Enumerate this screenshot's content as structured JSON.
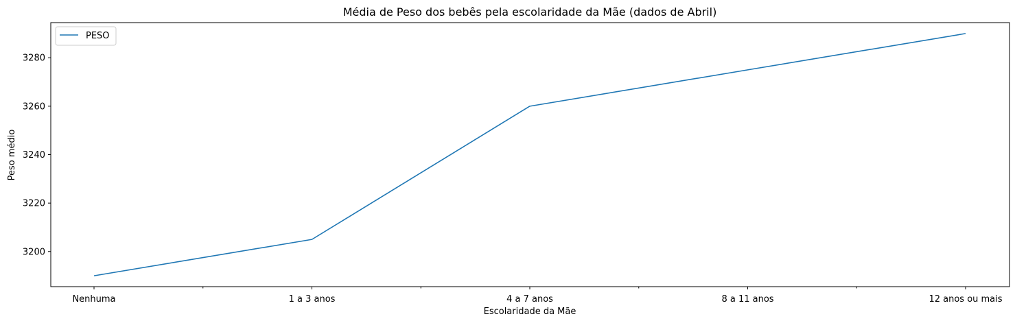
{
  "chart_data": {
    "type": "line",
    "title": "Média de Peso dos bebês pela escolaridade da Mãe (dados de Abril)",
    "xlabel": "Escolaridade da Mãe",
    "ylabel": "Peso médio",
    "categories": [
      "Nenhuma",
      "1 a 3 anos",
      "4 a 7 anos",
      "8 a 11 anos",
      "12 anos ou mais"
    ],
    "series": [
      {
        "name": "PESO",
        "color": "#1f77b4",
        "values": [
          3190,
          3205,
          3260,
          3275,
          3290
        ]
      }
    ],
    "ylim": [
      3185.5,
      3294.5
    ],
    "yticks": [
      3200,
      3220,
      3240,
      3260,
      3280
    ],
    "minor_x_ticks": true,
    "grid": false,
    "legend": "top-left"
  }
}
